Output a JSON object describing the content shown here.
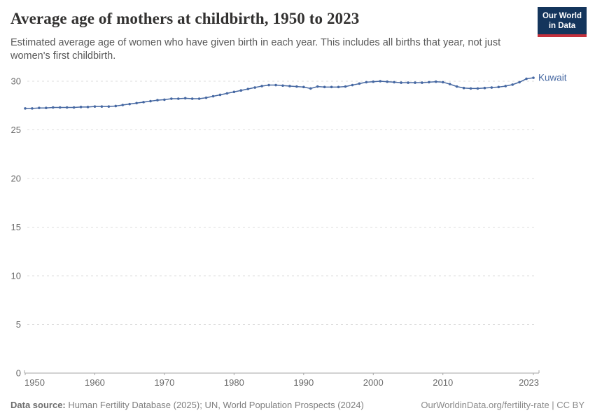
{
  "header": {
    "title": "Average age of mothers at childbirth, 1950 to 2023",
    "subtitle": "Estimated average age of women who have given birth in each year. This includes all births that year, not just women's first childbirth.",
    "logo": {
      "line1": "Our World",
      "line2": "in Data"
    }
  },
  "colors": {
    "line": "#4668A2",
    "grid": "#dddddd",
    "axis": "#a5a5a5",
    "tick_text": "#6b6b6b",
    "logo_bg": "#14355C",
    "logo_red": "#C5303C"
  },
  "chart_data": {
    "type": "line",
    "title": "Average age of mothers at childbirth, 1950 to 2023",
    "xlabel": "",
    "ylabel": "",
    "xlim": [
      1950,
      2023
    ],
    "ylim": [
      0,
      31
    ],
    "x_ticks": [
      1950,
      1960,
      1970,
      1980,
      1990,
      2000,
      2010,
      2023
    ],
    "y_ticks": [
      0,
      5,
      10,
      15,
      20,
      25,
      30
    ],
    "grid": "horizontal-dashed",
    "legend_position": "end-of-line",
    "series": [
      {
        "name": "Kuwait",
        "x": [
          1950,
          1951,
          1952,
          1953,
          1954,
          1955,
          1956,
          1957,
          1958,
          1959,
          1960,
          1961,
          1962,
          1963,
          1964,
          1965,
          1966,
          1967,
          1968,
          1969,
          1970,
          1971,
          1972,
          1973,
          1974,
          1975,
          1976,
          1977,
          1978,
          1979,
          1980,
          1981,
          1982,
          1983,
          1984,
          1985,
          1986,
          1987,
          1988,
          1989,
          1990,
          1991,
          1992,
          1993,
          1994,
          1995,
          1996,
          1997,
          1998,
          1999,
          2000,
          2001,
          2002,
          2003,
          2004,
          2005,
          2006,
          2007,
          2008,
          2009,
          2010,
          2011,
          2012,
          2013,
          2014,
          2015,
          2016,
          2017,
          2018,
          2019,
          2020,
          2021,
          2022,
          2023
        ],
        "values": [
          27.2,
          27.2,
          27.25,
          27.25,
          27.3,
          27.3,
          27.3,
          27.3,
          27.35,
          27.35,
          27.4,
          27.4,
          27.4,
          27.45,
          27.55,
          27.65,
          27.75,
          27.85,
          27.95,
          28.05,
          28.1,
          28.2,
          28.2,
          28.25,
          28.2,
          28.2,
          28.3,
          28.45,
          28.6,
          28.75,
          28.9,
          29.05,
          29.2,
          29.35,
          29.5,
          29.6,
          29.6,
          29.55,
          29.5,
          29.45,
          29.4,
          29.25,
          29.45,
          29.4,
          29.4,
          29.4,
          29.45,
          29.6,
          29.75,
          29.9,
          29.95,
          30.0,
          29.95,
          29.9,
          29.85,
          29.85,
          29.85,
          29.85,
          29.9,
          29.95,
          29.9,
          29.7,
          29.45,
          29.3,
          29.25,
          29.25,
          29.3,
          29.35,
          29.4,
          29.5,
          29.65,
          29.9,
          30.25,
          30.35
        ]
      }
    ]
  },
  "footer": {
    "datasource_label": "Data source:",
    "datasource_value": " Human Fertility Database (2025); UN, World Population Prospects (2024)",
    "right": "OurWorldinData.org/fertility-rate | CC BY"
  }
}
